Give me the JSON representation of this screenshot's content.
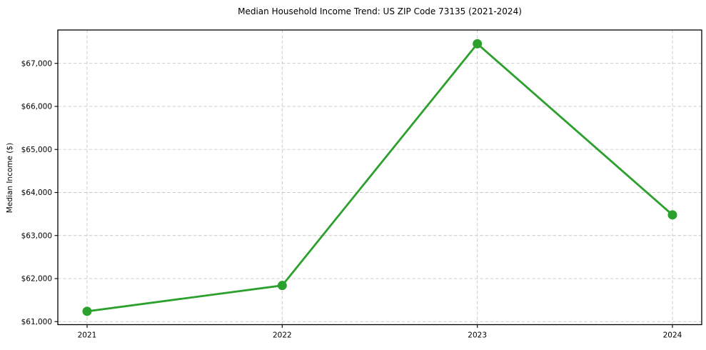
{
  "chart_data": {
    "type": "line",
    "title": "Median Household Income Trend: US ZIP Code 73135 (2021-2024)",
    "xlabel": "",
    "ylabel": "Median Income ($)",
    "x": [
      2021,
      2022,
      2023,
      2024
    ],
    "x_tick_labels": [
      "2021",
      "2022",
      "2023",
      "2024"
    ],
    "series": [
      {
        "name": "median-household-income",
        "values": [
          61240,
          61840,
          67455,
          63480
        ],
        "color": "#2ca02c",
        "marker": "circle"
      }
    ],
    "xlim": [
      2020.85,
      2024.15
    ],
    "ylim": [
      60930,
      67775
    ],
    "yticks": [
      61000,
      62000,
      63000,
      64000,
      65000,
      66000,
      67000
    ],
    "y_tick_labels": [
      "$61,000",
      "$62,000",
      "$63,000",
      "$64,000",
      "$65,000",
      "$66,000",
      "$67,000"
    ],
    "grid": true,
    "grid_color": "#c9c9c9",
    "spine_color": "#000000",
    "legend": false
  }
}
